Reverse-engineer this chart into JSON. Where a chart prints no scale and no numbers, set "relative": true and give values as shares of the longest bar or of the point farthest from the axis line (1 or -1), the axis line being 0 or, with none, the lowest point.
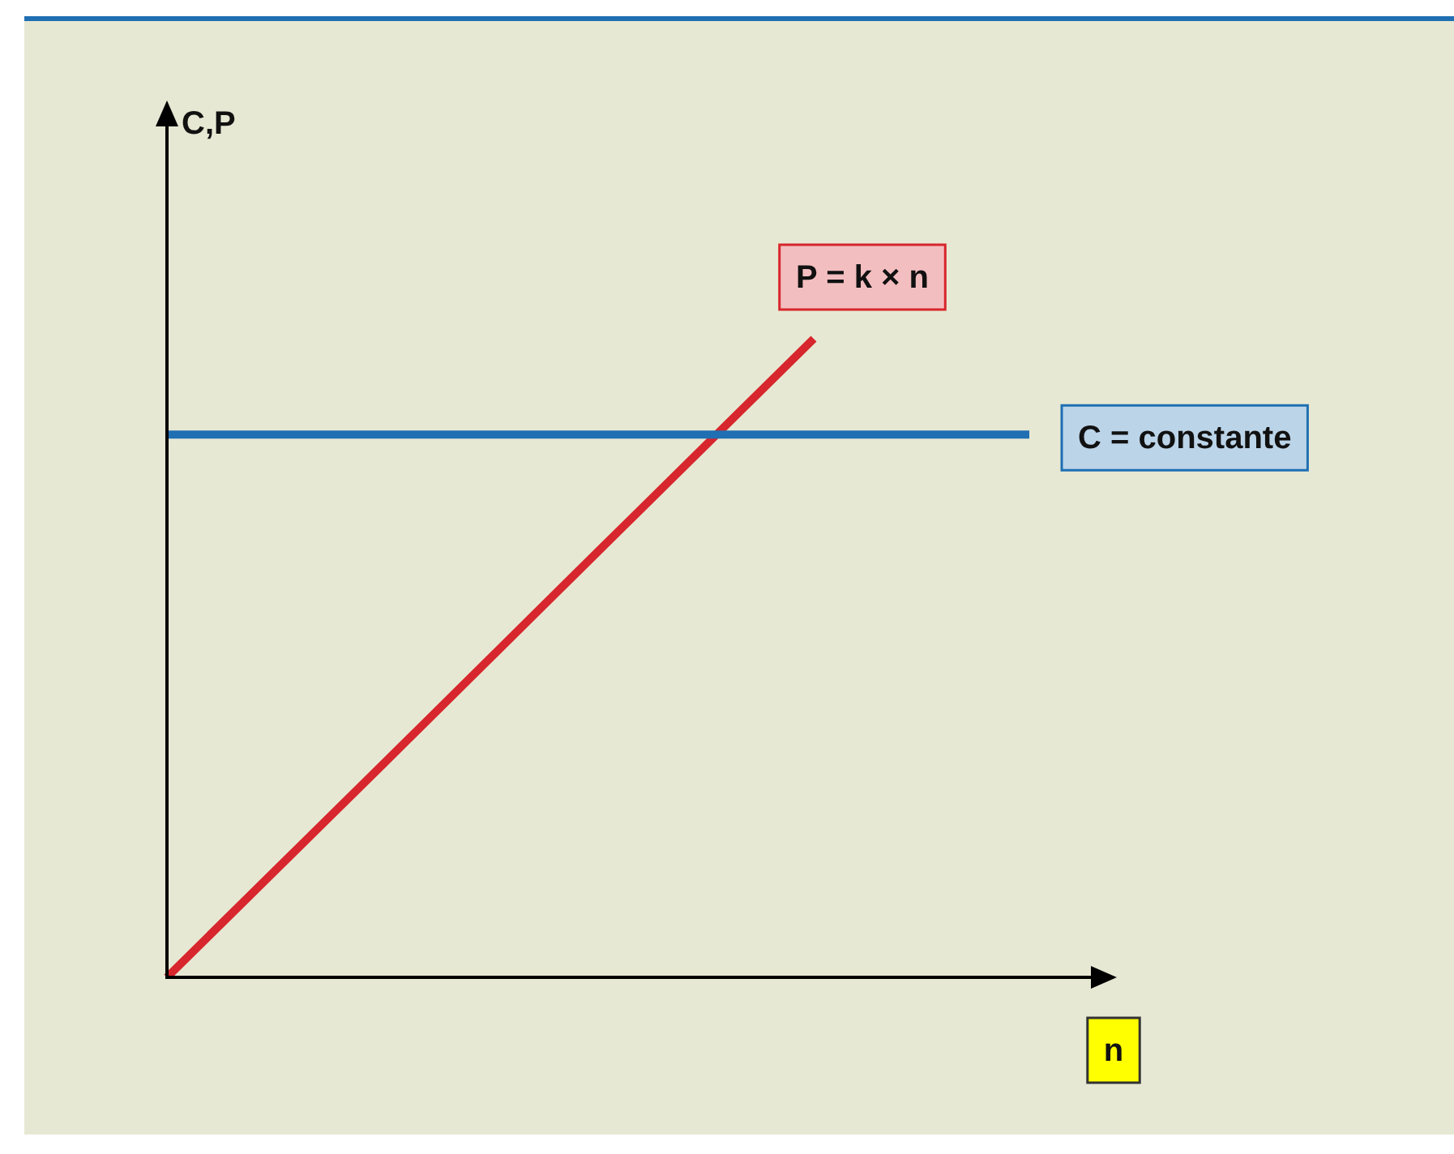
{
  "chart_data": {
    "type": "line",
    "relative": true,
    "xlabel": "n",
    "annotations": [
      "C,P"
    ],
    "categories": [
      null,
      null,
      null,
      null,
      null
    ],
    "series": [
      {
        "name": "C = constante",
        "color": "#1f6fb2",
        "values": [
          0.85,
          0.85,
          0.85,
          0.85,
          0.85
        ]
      },
      {
        "name": "P = k × n",
        "color": "#d7262d",
        "values": [
          0,
          0.333,
          0.667,
          1,
          null
        ]
      }
    ],
    "legend": false,
    "marker": "none",
    "line_style": "solid"
  }
}
